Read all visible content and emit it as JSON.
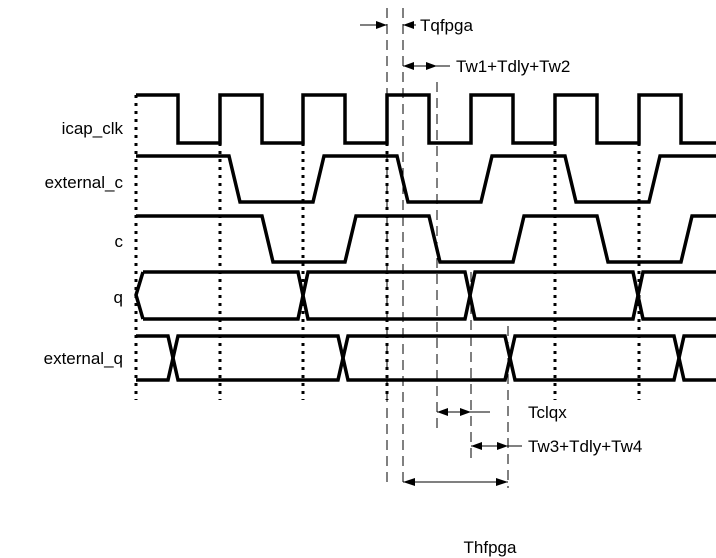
{
  "signals": [
    {
      "id": "icap_clk",
      "label": "icap_clk"
    },
    {
      "id": "external_c",
      "label": "external_c"
    },
    {
      "id": "c",
      "label": "c"
    },
    {
      "id": "q",
      "label": "q"
    },
    {
      "id": "external_q",
      "label": "external_q"
    }
  ],
  "annotations": {
    "tqfpga": "Tqfpga",
    "tw1": "Tw1+Tdly+Tw2",
    "tclqx": "Tclqx",
    "tw3": "Tw3+Tdly+Tw4",
    "thfpga": "Thfpga"
  },
  "colors": {
    "line": "#000000",
    "background": "#ffffff"
  }
}
